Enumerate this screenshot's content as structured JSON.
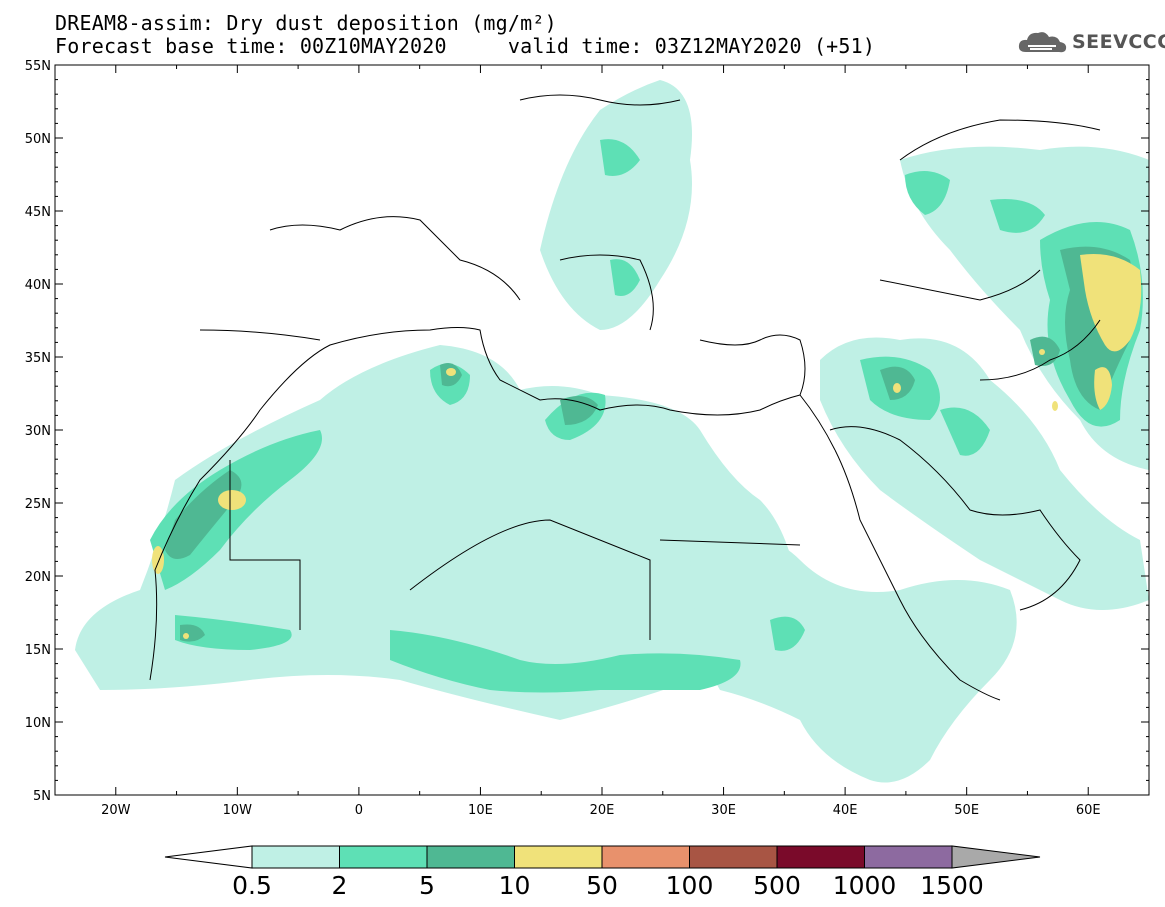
{
  "header": {
    "title_line1": "DREAM8-assim: Dry dust deposition (mg/m²)",
    "title_line2": "Forecast base time: 00Z10MAY2020     valid time: 03Z12MAY2020 (+51)"
  },
  "logo": {
    "text": "SEEVCCC",
    "icon": "cloud-icon"
  },
  "map": {
    "lon_labels": [
      "20W",
      "10W",
      "0",
      "10E",
      "20E",
      "30E",
      "40E",
      "50E",
      "60E"
    ],
    "lat_labels": [
      "55N",
      "50N",
      "45N",
      "40N",
      "35N",
      "30N",
      "25N",
      "20N",
      "15N",
      "10N",
      "5N"
    ],
    "lon_range": [
      -25,
      65
    ],
    "lat_range": [
      5,
      55
    ]
  },
  "legend": {
    "labels": [
      "0.5",
      "2",
      "5",
      "10",
      "50",
      "100",
      "500",
      "1000",
      "1500"
    ],
    "colors": [
      "#bff0e5",
      "#5ee0b5",
      "#4fb893",
      "#f0e27a",
      "#e8916c",
      "#a85544",
      "#7a0a2a",
      "#8d6aa0",
      "#a9a9a9"
    ]
  }
}
